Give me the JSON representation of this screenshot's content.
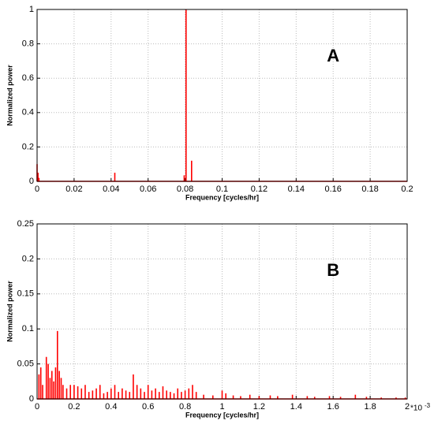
{
  "chart_data": [
    {
      "type": "stem",
      "annotation": "A",
      "xlabel": "Frequency [cycles/hr]",
      "ylabel": "Normalized power",
      "color": "#ff0000",
      "grid": true,
      "xlim": [
        0,
        0.2
      ],
      "ylim": [
        0,
        1
      ],
      "xticks": [
        0,
        0.02,
        0.04,
        0.06,
        0.08,
        0.1,
        0.12,
        0.14,
        0.16,
        0.18,
        0.2
      ],
      "yticks": [
        0,
        0.2,
        0.4,
        0.6,
        0.8,
        1
      ],
      "x": [
        0,
        0.0005,
        0.001,
        0.042,
        0.0795,
        0.0805,
        0.0835
      ],
      "values": [
        0.1,
        0.05,
        0.02,
        0.05,
        0.035,
        1,
        0.12
      ]
    },
    {
      "type": "stem",
      "annotation": "B",
      "xlabel": "Frequency [cycles/hr]",
      "ylabel": "Normalized power",
      "color": "#ff0000",
      "grid": true,
      "x_scale_label": {
        "base": "*10",
        "exponent": "-3"
      },
      "xlim": [
        0,
        2
      ],
      "ylim": [
        0,
        0.25
      ],
      "xticks": [
        0,
        0.2,
        0.4,
        0.6,
        0.8,
        1,
        1.2,
        1.4,
        1.6,
        1.8,
        2
      ],
      "yticks": [
        0,
        0.05,
        0.1,
        0.15,
        0.2,
        0.25
      ],
      "x": [
        0.01,
        0.02,
        0.03,
        0.05,
        0.06,
        0.07,
        0.08,
        0.09,
        0.1,
        0.11,
        0.12,
        0.13,
        0.14,
        0.16,
        0.18,
        0.2,
        0.22,
        0.24,
        0.26,
        0.28,
        0.3,
        0.32,
        0.34,
        0.36,
        0.38,
        0.4,
        0.42,
        0.44,
        0.46,
        0.48,
        0.5,
        0.52,
        0.54,
        0.56,
        0.58,
        0.6,
        0.62,
        0.64,
        0.66,
        0.68,
        0.7,
        0.72,
        0.74,
        0.76,
        0.78,
        0.8,
        0.82,
        0.84,
        0.86,
        0.9,
        0.95,
        1.0,
        1.02,
        1.06,
        1.1,
        1.15,
        1.2,
        1.26,
        1.3,
        1.38,
        1.46,
        1.5,
        1.58,
        1.64,
        1.72,
        1.78,
        1.86,
        1.94,
        1.99
      ],
      "values": [
        0.035,
        0.045,
        0.02,
        0.06,
        0.05,
        0.03,
        0.04,
        0.025,
        0.045,
        0.097,
        0.04,
        0.03,
        0.02,
        0.015,
        0.02,
        0.02,
        0.018,
        0.015,
        0.02,
        0.01,
        0.012,
        0.015,
        0.02,
        0.008,
        0.01,
        0.015,
        0.02,
        0.01,
        0.015,
        0.012,
        0.01,
        0.035,
        0.02,
        0.015,
        0.01,
        0.02,
        0.012,
        0.015,
        0.01,
        0.018,
        0.012,
        0.01,
        0.008,
        0.015,
        0.01,
        0.012,
        0.015,
        0.02,
        0.01,
        0.006,
        0.005,
        0.012,
        0.008,
        0.005,
        0.004,
        0.006,
        0.004,
        0.005,
        0.004,
        0.006,
        0.004,
        0.003,
        0.004,
        0.003,
        0.006,
        0.003,
        0.002,
        0.002,
        0.002
      ]
    }
  ]
}
